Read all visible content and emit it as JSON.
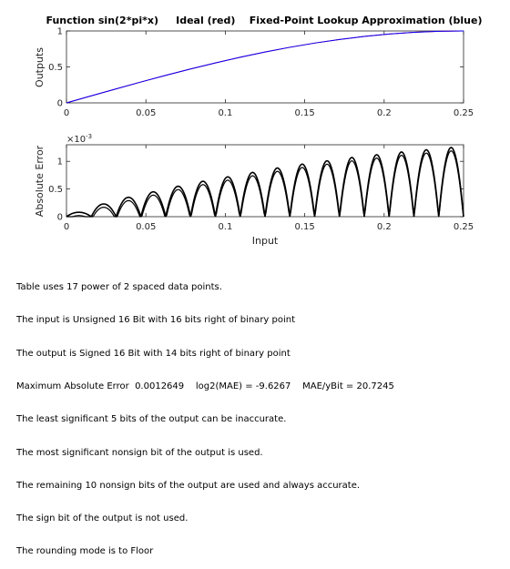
{
  "chart_data": [
    {
      "type": "line",
      "title": "Function sin(2*pi*x)     Ideal (red)    Fixed-Point Lookup Approximation (blue)",
      "xlabel": "",
      "ylabel": "Outputs",
      "xlim": [
        0,
        0.25
      ],
      "ylim": [
        0,
        1
      ],
      "xticks": [
        0,
        0.05,
        0.1,
        0.15,
        0.2,
        0.25
      ],
      "xtick_labels": [
        "0",
        "0.05",
        "0.1",
        "0.15",
        "0.2",
        "0.25"
      ],
      "yticks": [
        0,
        0.5,
        1
      ],
      "ytick_labels": [
        "0",
        "0.5",
        "1"
      ],
      "series": [
        {
          "name": "Ideal",
          "color": "#ff0000",
          "x": [
            0,
            0.015625,
            0.03125,
            0.046875,
            0.0625,
            0.078125,
            0.09375,
            0.109375,
            0.125,
            0.140625,
            0.15625,
            0.171875,
            0.1875,
            0.203125,
            0.21875,
            0.234375,
            0.25
          ],
          "y": [
            0,
            0.098,
            0.1951,
            0.2903,
            0.3827,
            0.4714,
            0.5556,
            0.6344,
            0.7071,
            0.773,
            0.8315,
            0.8819,
            0.9239,
            0.9569,
            0.9808,
            0.9952,
            1.0
          ]
        },
        {
          "name": "Fixed-Point Lookup Approximation",
          "color": "#0000ff",
          "x": [
            0,
            0.015625,
            0.03125,
            0.046875,
            0.0625,
            0.078125,
            0.09375,
            0.109375,
            0.125,
            0.140625,
            0.15625,
            0.171875,
            0.1875,
            0.203125,
            0.21875,
            0.234375,
            0.25
          ],
          "y": [
            0,
            0.098,
            0.1951,
            0.2903,
            0.3827,
            0.4714,
            0.5556,
            0.6344,
            0.7071,
            0.773,
            0.8315,
            0.8819,
            0.9239,
            0.9569,
            0.9808,
            0.9952,
            1.0
          ]
        }
      ],
      "grid": false,
      "legend": "none"
    },
    {
      "type": "line",
      "title": "",
      "xlabel": "Input",
      "ylabel": "Absolute Error",
      "xlim": [
        0,
        0.25
      ],
      "ylim": [
        0,
        0.0013
      ],
      "exponent_label": "×10",
      "exponent_power": "-3",
      "xticks": [
        0,
        0.05,
        0.1,
        0.15,
        0.2,
        0.25
      ],
      "xtick_labels": [
        "0",
        "0.05",
        "0.1",
        "0.15",
        "0.2",
        "0.25"
      ],
      "yticks": [
        0,
        0.0005,
        0.001
      ],
      "ytick_labels": [
        "0",
        "0.5",
        "1"
      ],
      "series": [
        {
          "name": "",
          "color": "#000000",
          "x": [
            0,
            0.015625,
            0.03125,
            0.046875,
            0.0625,
            0.078125,
            0.09375,
            0.109375,
            0.125,
            0.140625,
            0.15625,
            0.171875,
            0.1875,
            0.203125,
            0.21875,
            0.234375,
            0.25
          ],
          "segment_peaks": [
            8e-05,
            0.00023,
            0.00035,
            0.00045,
            0.00055,
            0.00064,
            0.00072,
            0.0008,
            0.00088,
            0.00095,
            0.00101,
            0.00107,
            0.00112,
            0.00117,
            0.00121,
            0.00125
          ]
        }
      ],
      "grid": false,
      "legend": "none"
    }
  ],
  "info": {
    "lines": [
      "Table uses 17 power of 2 spaced data points.",
      "The input is Unsigned 16 Bit with 16 bits right of binary point",
      "The output is Signed 16 Bit with 14 bits right of binary point",
      "Maximum Absolute Error  0.0012649    log2(MAE) = -9.6267    MAE/yBit = 20.7245",
      "The least significant 5 bits of the output can be inaccurate.",
      "The most significant nonsign bit of the output is used.",
      "The remaining 10 nonsign bits of the output are used and always accurate.",
      "The sign bit of the output is not used.",
      "The rounding mode is to Floor"
    ]
  }
}
